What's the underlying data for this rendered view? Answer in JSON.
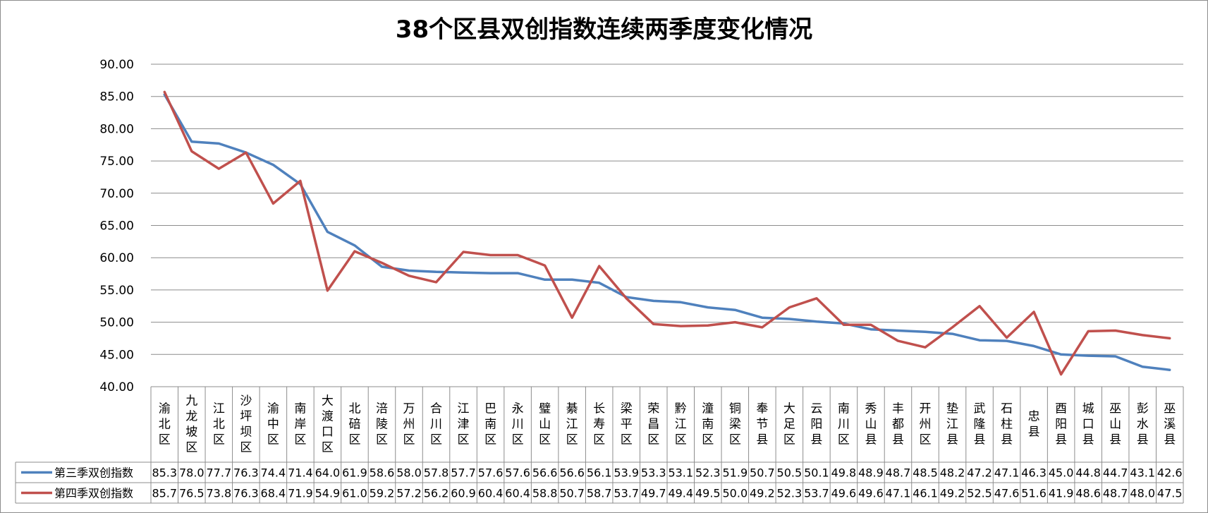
{
  "chart_data": {
    "type": "line",
    "title": "38个区县双创指数连续两季度变化情况",
    "ylim": [
      40,
      90
    ],
    "yticks": [
      "90.00",
      "85.00",
      "80.00",
      "75.00",
      "70.00",
      "65.00",
      "60.00",
      "55.00",
      "50.00",
      "45.00",
      "40.00"
    ],
    "grid": true,
    "legend": "bottom-data-table",
    "categories": [
      "渝北区",
      "九龙坡区",
      "江北区",
      "沙坪坝区",
      "渝中区",
      "南岸区",
      "大渡口区",
      "北碚区",
      "涪陵区",
      "万州区",
      "合川区",
      "江津区",
      "巴南区",
      "永川区",
      "璧山区",
      "綦江区",
      "长寿区",
      "梁平区",
      "荣昌区",
      "黔江区",
      "潼南区",
      "铜梁区",
      "奉节县",
      "大足区",
      "云阳县",
      "南川区",
      "秀山县",
      "丰都县",
      "开州区",
      "垫江县",
      "武隆县",
      "石柱县",
      "忠县",
      "酉阳县",
      "城口县",
      "巫山县",
      "彭水县",
      "巫溪县"
    ],
    "series": [
      {
        "name": "第三季双创指数",
        "color": "#4f81bd",
        "values": [
          85.3,
          78.0,
          77.7,
          76.3,
          74.4,
          71.4,
          64.0,
          61.9,
          58.6,
          58.0,
          57.8,
          57.7,
          57.6,
          57.6,
          56.6,
          56.6,
          56.1,
          53.9,
          53.3,
          53.1,
          52.3,
          51.9,
          50.7,
          50.5,
          50.1,
          49.8,
          48.9,
          48.7,
          48.5,
          48.2,
          47.2,
          47.1,
          46.3,
          45.0,
          44.8,
          44.7,
          43.1,
          42.6
        ],
        "labels": [
          "85.3",
          "78.0",
          "77.7",
          "76.3",
          "74.4",
          "71.4",
          "64.0",
          "61.9",
          "58.6",
          "58.0",
          "57.8",
          "57.7",
          "57.6",
          "57.6",
          "56.6",
          "56.6",
          "56.1",
          "53.9",
          "53.3",
          "53.1",
          "52.3",
          "51.9",
          "50.7",
          "50.5",
          "50.1",
          "49.8",
          "48.9",
          "48.7",
          "48.5",
          "48.2",
          "47.2",
          "47.1",
          "46.3",
          "45.0",
          "44.8",
          "44.7",
          "43.1",
          "42.6"
        ]
      },
      {
        "name": "第四季双创指数",
        "color": "#c0504d",
        "values": [
          85.7,
          76.5,
          73.8,
          76.3,
          68.4,
          71.9,
          54.9,
          61.0,
          59.2,
          57.2,
          56.2,
          60.9,
          60.4,
          60.4,
          58.8,
          50.7,
          58.7,
          53.7,
          49.7,
          49.4,
          49.5,
          50.0,
          49.2,
          52.3,
          53.7,
          49.6,
          49.6,
          47.1,
          46.1,
          49.2,
          52.5,
          47.6,
          51.6,
          41.9,
          48.6,
          48.7,
          48.0,
          47.5
        ],
        "labels": [
          "85.7",
          "76.5",
          "73.8",
          "76.3",
          "68.4",
          "71.9",
          "54.9",
          "61.0",
          "59.2",
          "57.2",
          "56.2",
          "60.9",
          "60.4",
          "60.4",
          "58.8",
          "50.7",
          "58.7",
          "53.7",
          "49.7",
          "49.4",
          "49.5",
          "50.0",
          "49.2",
          "52.3",
          "53.7",
          "49.6",
          "49.6",
          "47.1",
          "46.1",
          "49.2",
          "52.5",
          "47.6",
          "51.6",
          "41.9",
          "48.6",
          "48.7",
          "48.0",
          "47.5"
        ]
      }
    ]
  }
}
